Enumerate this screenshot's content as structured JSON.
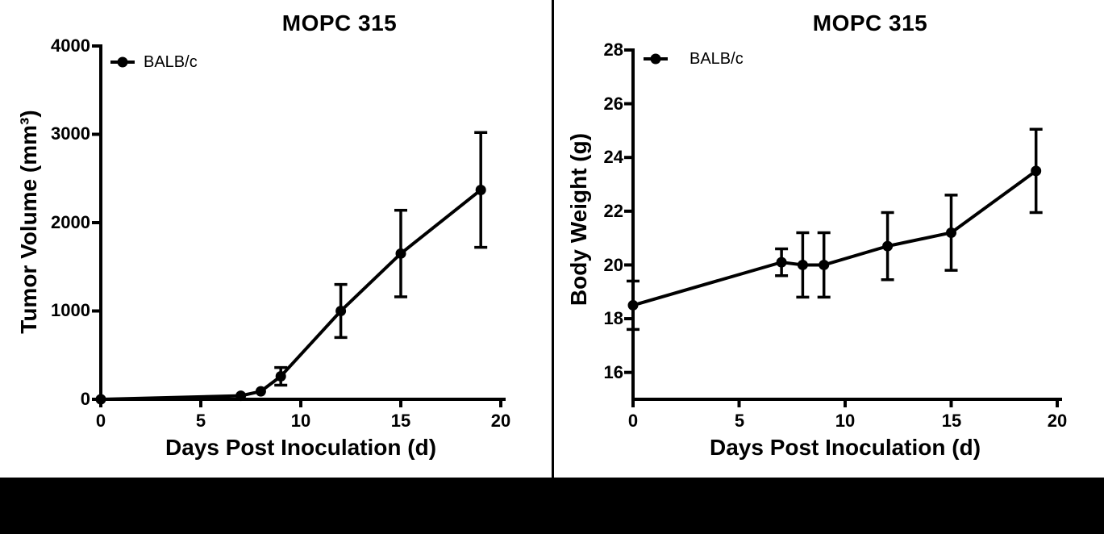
{
  "page": {
    "background_color": "#ffffff",
    "divider_color": "#000000",
    "bottom_band_color": "#000000",
    "series_color": "#000000"
  },
  "chart_data": [
    {
      "type": "line",
      "title": "MOPC 315",
      "xlabel": "Days Post Inoculation (d)",
      "ylabel": "Tumor Volume (mm³)",
      "legend": [
        {
          "label": "BALB/c",
          "marker": "filled-circle-on-line",
          "color": "#000000"
        }
      ],
      "legend_position": "top-left",
      "grid": false,
      "x": [
        0,
        7,
        8,
        9,
        12,
        15,
        19
      ],
      "series": [
        {
          "name": "BALB/c",
          "values": [
            0,
            40,
            90,
            260,
            1000,
            1650,
            2370
          ],
          "err": [
            0,
            0,
            0,
            100,
            300,
            490,
            650
          ]
        }
      ],
      "xlim": [
        0,
        20.2
      ],
      "ylim": [
        0,
        4000
      ],
      "xticks": [
        0,
        5,
        10,
        15,
        20
      ],
      "yticks": [
        4000,
        3000,
        2000,
        1000,
        0
      ]
    },
    {
      "type": "line",
      "title": "MOPC 315",
      "xlabel": "Days Post Inoculation (d)",
      "ylabel": "Body Weight (g)",
      "legend": [
        {
          "label": "BALB/c",
          "marker": "filled-circle-on-line",
          "color": "#000000"
        }
      ],
      "legend_position": "top-left",
      "grid": false,
      "x": [
        0,
        7,
        8,
        9,
        12,
        15,
        19
      ],
      "series": [
        {
          "name": "BALB/c",
          "values": [
            18.5,
            20.1,
            20,
            20,
            20.7,
            21.2,
            23.5
          ],
          "err": [
            0.9,
            0.5,
            1.2,
            1.2,
            1.25,
            1.4,
            1.55
          ]
        }
      ],
      "xlim": [
        0,
        20.2
      ],
      "ylim": [
        15,
        28
      ],
      "xticks": [
        0,
        5,
        10,
        15,
        20
      ],
      "yticks": [
        28,
        26,
        24,
        22,
        20,
        18,
        16
      ]
    }
  ]
}
